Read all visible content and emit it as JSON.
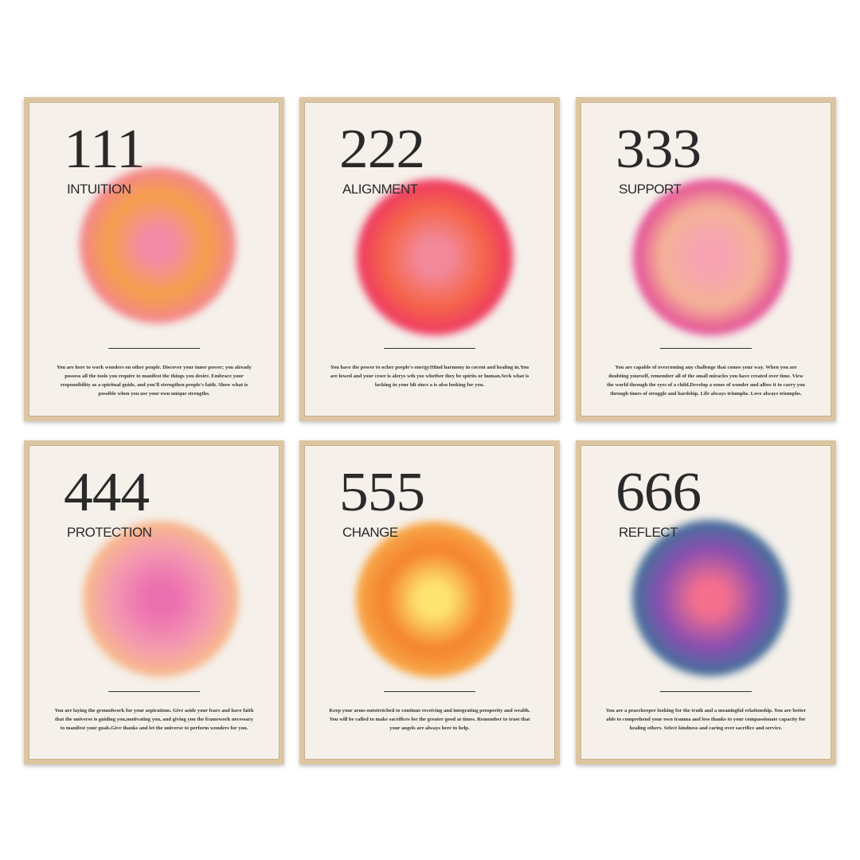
{
  "posters": [
    {
      "number": "111",
      "title": "INTUITION",
      "text": "You are here to work wonders on other people. Discover your inner power; you already possess all the tools you require to manifest the things you desire. Embrace your responsibility as a spiritual guide, and you'll strengthen people's faith. Show what is possible when you use your own unique strengths.",
      "colors": [
        "#f38ba8",
        "#f5a04a",
        "#f27ba4"
      ]
    },
    {
      "number": "222",
      "title": "ALIGNMENT",
      "text": "You have the power to ocher peeple's energy!Hind harmony in cocent and healing in.You are lowed and your ceser is alerys wth yoe whetber they be spirits or human.Seck what is lacking in your ldt since a is afso looking for you.",
      "colors": [
        "#f28a9c",
        "#f5654a",
        "#ec2a6a"
      ]
    },
    {
      "number": "333",
      "title": "SUPPORT",
      "text": "You are capable of overcoming any challenge that comes your way. When you are doubting yourself, remember all of the small miracles you have created over time. View the world through the eyes of a child.Develop a sense of wonder and allow it to carry you through times of struggle and hardship. Life always triumphs. Love always triumphs.",
      "colors": [
        "#f7a3b2",
        "#f4b296",
        "#df2b98"
      ]
    },
    {
      "number": "444",
      "title": "PROTECTION",
      "text": "You are laying the groundwork for your aspirations. Give aside your fears and have faith that the universe is guiding you,motivating you, and giving you the framework necessary to manifest your goals.Give thanks and let the universe to perform wonders for you.",
      "colors": [
        "#ec6fb0",
        "#f49ab0",
        "#f8c47e"
      ]
    },
    {
      "number": "555",
      "title": "CHANGE",
      "text": "Keep your arms outstretched to continue receiving and integrating prosperity and wealth. You will be called to make sacrifices for the greater good at times. Remember to trust that your angels are always here to help.",
      "colors": [
        "#fde472",
        "#f5822e",
        "#f8b552"
      ]
    },
    {
      "number": "666",
      "title": "REFLECT",
      "text": "You are a peacekeeper looking for the truth and a meaningful relationship. You are better able to comprehend your own trauma and less thanks to your compassionate capacity for healing others. Select kindness and caring over sacrifice and service.",
      "colors": [
        "#f56f8e",
        "#8a4fb0",
        "#2a7b92"
      ]
    }
  ]
}
